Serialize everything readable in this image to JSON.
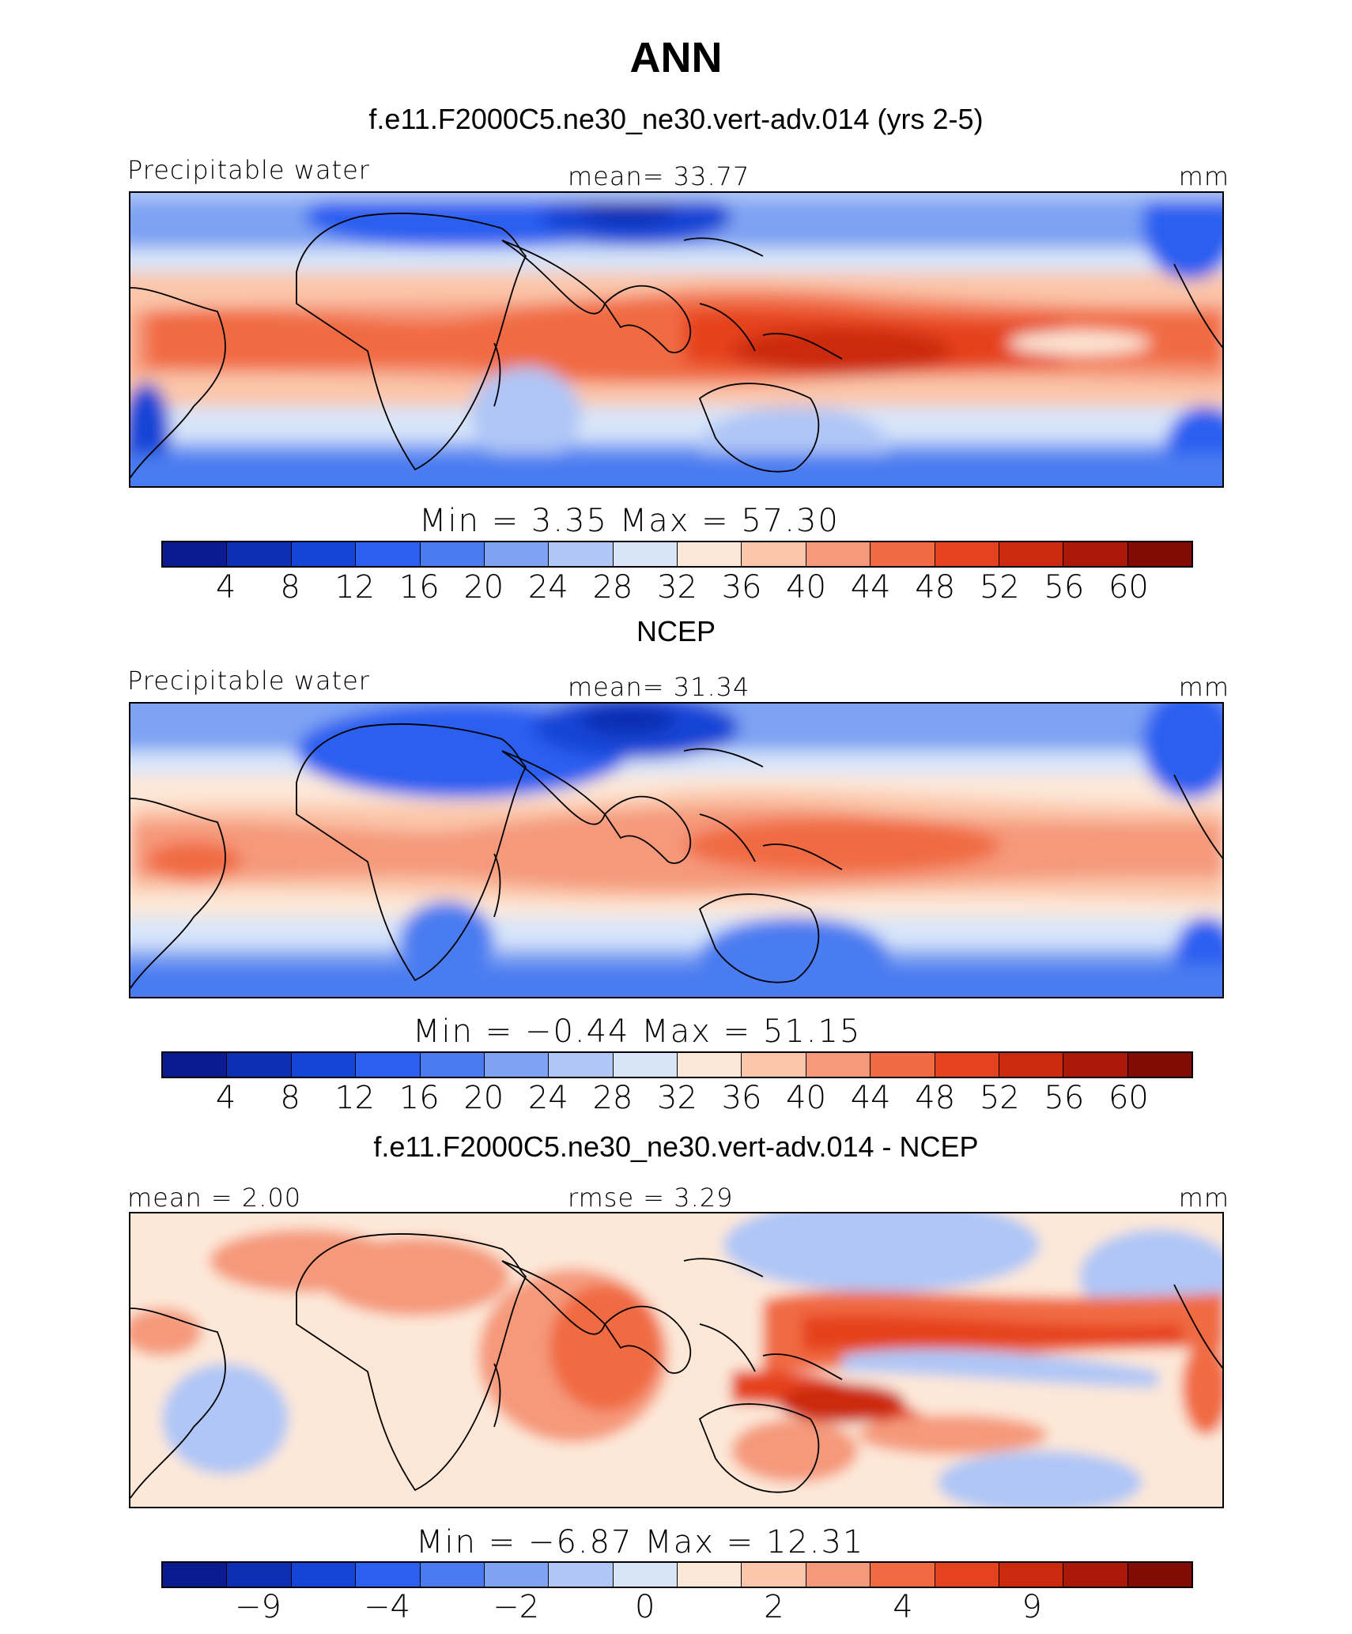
{
  "title": "ANN",
  "colors": [
    "#0a1a8f",
    "#0c2fb3",
    "#1445d6",
    "#2a5ff0",
    "#4a7cf0",
    "#7ea3f3",
    "#afc6f6",
    "#d8e5f9",
    "#fde8d8",
    "#fbc6aa",
    "#f5997a",
    "#f06a43",
    "#e5431f",
    "#cc2a10",
    "#aa1808",
    "#800c04"
  ],
  "panels": [
    {
      "title": "f.e11.F2000C5.ne30_ne30.vert-adv.014 (yrs 2-5)",
      "left_label": "Precipitable water",
      "center_label": "mean=  33.77",
      "units": "mm",
      "min_text": "Min  =     3.35  Max  =    57.30",
      "ticks": [
        "4",
        "8",
        "12",
        "16",
        "20",
        "24",
        "28",
        "32",
        "36",
        "40",
        "44",
        "48",
        "52",
        "56",
        "60"
      ]
    },
    {
      "title": "NCEP",
      "left_label": "Precipitable water",
      "center_label": "mean=  31.34",
      "units": "mm",
      "min_text": "Min  =   −0.44  Max  =    51.15",
      "ticks": [
        "4",
        "8",
        "12",
        "16",
        "20",
        "24",
        "28",
        "32",
        "36",
        "40",
        "44",
        "48",
        "52",
        "56",
        "60"
      ]
    },
    {
      "title": "f.e11.F2000C5.ne30_ne30.vert-adv.014 - NCEP",
      "left_label": "mean =   2.00",
      "center_label": "rmse =      3.29",
      "units": "mm",
      "min_text": "Min  =   −6.87  Max  =    12.31",
      "ticks": [
        "−9",
        "−4",
        "−2",
        "0",
        "2",
        "4",
        "9"
      ]
    }
  ]
}
